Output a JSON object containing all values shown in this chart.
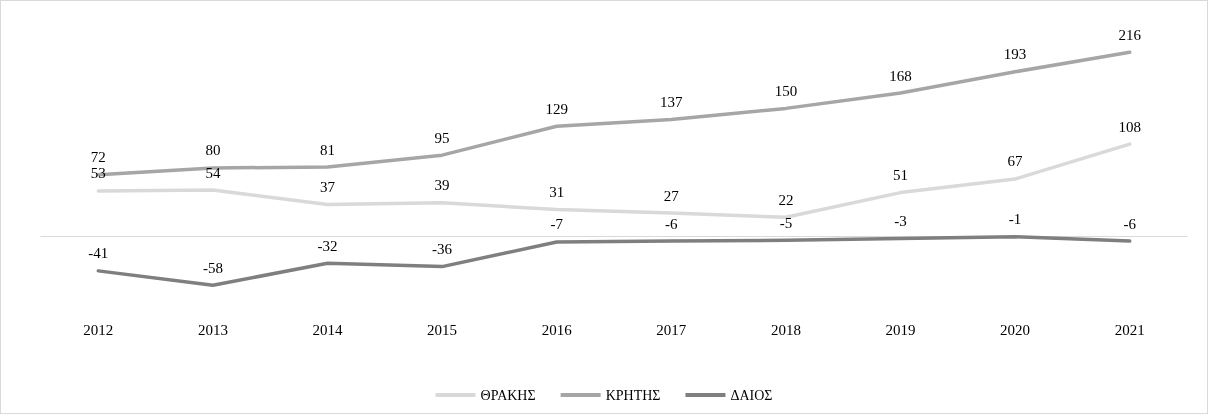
{
  "chart_data": {
    "type": "line",
    "categories": [
      "2012",
      "2013",
      "2014",
      "2015",
      "2016",
      "2017",
      "2018",
      "2019",
      "2020",
      "2021"
    ],
    "series": [
      {
        "name": "ΘΡΑΚΗΣ",
        "color": "#d9d9d9",
        "values": [
          53,
          54,
          37,
          39,
          31,
          27,
          22,
          51,
          67,
          108
        ]
      },
      {
        "name": "ΚΡΗΤΗΣ",
        "color": "#a6a6a6",
        "values": [
          72,
          80,
          81,
          95,
          129,
          137,
          150,
          168,
          193,
          216
        ]
      },
      {
        "name": "ΔΑΙΟΣ",
        "color": "#7f7f7f",
        "values": [
          -41,
          -58,
          -32,
          -36,
          -7,
          -6,
          -5,
          -3,
          -1,
          -6
        ]
      }
    ],
    "data_labels": true,
    "grid": false,
    "legend": "bottom",
    "marker": "none",
    "line_style": "solid"
  }
}
